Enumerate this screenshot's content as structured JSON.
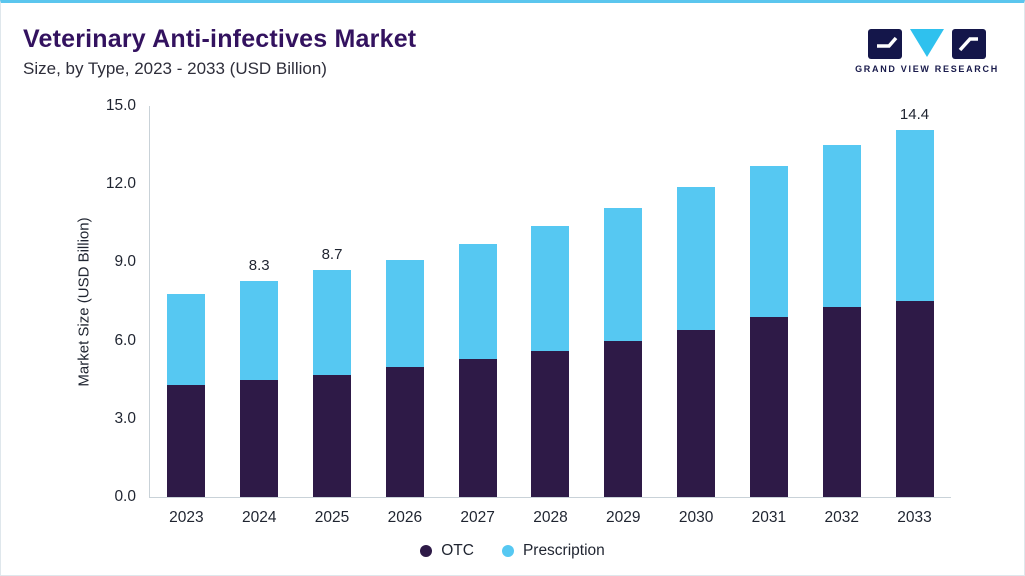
{
  "header": {
    "title": "Veterinary Anti-infectives Market",
    "subtitle": "Size, by Type, 2023 - 2033 (USD Billion)",
    "logo_text": "GRAND VIEW RESEARCH"
  },
  "colors": {
    "accent_top_line": "#5BC6EE",
    "title_text": "#33125F",
    "otc": "#2E1A47",
    "prescription": "#56C8F2",
    "logo_navy": "#14164A",
    "logo_cyan": "#2FC1EE"
  },
  "chart_data": {
    "type": "bar",
    "stacked": true,
    "title": "Veterinary Anti-infectives Market Size, by Type, 2023 - 2033 (USD Billion)",
    "xlabel": "",
    "ylabel": "Market Size (USD Billion)",
    "ylim": [
      0,
      15
    ],
    "yticks": [
      0,
      3,
      6,
      9,
      12,
      15
    ],
    "ytick_labels": [
      "0.0",
      "3.0",
      "6.0",
      "9.0",
      "12.0",
      "15.0"
    ],
    "grid": false,
    "legend_position": "bottom-center",
    "categories": [
      "2023",
      "2024",
      "2025",
      "2026",
      "2027",
      "2028",
      "2029",
      "2030",
      "2031",
      "2032",
      "2033"
    ],
    "series": [
      {
        "name": "OTC",
        "color": "#2E1A47",
        "values": [
          4.3,
          4.5,
          4.7,
          5.0,
          5.3,
          5.6,
          6.0,
          6.4,
          6.9,
          7.3,
          7.7
        ]
      },
      {
        "name": "Prescription",
        "color": "#56C8F2",
        "values": [
          3.5,
          3.8,
          4.0,
          4.1,
          4.4,
          4.8,
          5.1,
          5.5,
          5.8,
          6.2,
          6.7
        ]
      }
    ],
    "totals": [
      7.8,
      8.3,
      8.7,
      9.1,
      9.7,
      10.4,
      11.1,
      11.9,
      12.7,
      13.5,
      14.4
    ],
    "total_labels": [
      "",
      "8.3",
      "8.7",
      "",
      "",
      "",
      "",
      "",
      "",
      "",
      "14.4"
    ]
  }
}
